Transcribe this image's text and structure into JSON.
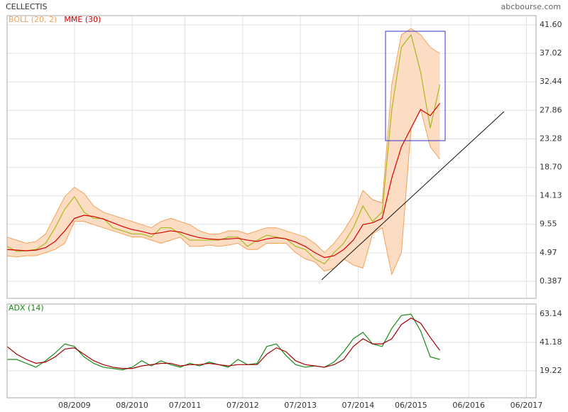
{
  "chart_data": [
    {
      "type": "line",
      "title": "CELLECTIS",
      "source": "abcbourse.com",
      "x": [
        "06/2008",
        "08/2008",
        "10/2008",
        "12/2008",
        "02/2009",
        "04/2009",
        "06/2009",
        "08/2009",
        "10/2009",
        "12/2009",
        "02/2010",
        "04/2010",
        "06/2010",
        "08/2010",
        "10/2010",
        "12/2010",
        "02/2011",
        "04/2011",
        "06/2011",
        "08/2011",
        "10/2011",
        "12/2011",
        "02/2012",
        "04/2012",
        "06/2012",
        "08/2012",
        "10/2012",
        "12/2012",
        "02/2013",
        "04/2013",
        "06/2013",
        "08/2013",
        "10/2013",
        "12/2013",
        "02/2014",
        "04/2014",
        "06/2014",
        "08/2014",
        "10/2014",
        "12/2014",
        "02/2015",
        "04/2015",
        "06/2015",
        "08/2015",
        "10/2015",
        "12/2015"
      ],
      "xlim": [
        "06/2008",
        "08/2017"
      ],
      "xticks": [
        "08/2009",
        "08/2010",
        "07/2011",
        "07/2012",
        "07/2013",
        "07/2014",
        "06/2015",
        "06/2016",
        "06/2017"
      ],
      "ylim": [
        -2.35,
        43.08
      ],
      "yticks": [
        {
          "value": 41.6,
          "label": "41.60"
        },
        37.02,
        32.44,
        27.86,
        23.28,
        {
          "value": 18.7,
          "label": "18.70"
        },
        14.13,
        9.55,
        4.97,
        0.387
      ],
      "grid": true,
      "bands": {
        "name": "BOLL (20, 2)",
        "color": "#f2a25a",
        "fill": "#fcdcc2",
        "upper": [
          7.5,
          7.0,
          6.5,
          6.8,
          8.0,
          11.0,
          14.0,
          15.5,
          14.5,
          12.5,
          11.5,
          11.0,
          10.5,
          10.0,
          9.5,
          9.0,
          10.0,
          10.5,
          10.0,
          9.5,
          8.5,
          8.0,
          8.0,
          8.5,
          8.5,
          8.0,
          8.5,
          9.0,
          9.0,
          8.5,
          8.0,
          7.5,
          6.5,
          5.0,
          6.5,
          8.5,
          11.0,
          15.0,
          13.5,
          13.0,
          32,
          40,
          41,
          40,
          38,
          37
        ],
        "lower": [
          4.5,
          4.3,
          4.5,
          4.5,
          5.0,
          5.5,
          6.5,
          10.0,
          10.0,
          9.5,
          9.0,
          8.5,
          8.0,
          7.5,
          7.5,
          7.0,
          6.5,
          7.0,
          7.5,
          6.0,
          6.0,
          6.2,
          6.0,
          6.2,
          6.5,
          5.5,
          5.5,
          6.5,
          6.5,
          6.5,
          5.0,
          4.0,
          3.5,
          2.0,
          2.5,
          4.0,
          3.0,
          2.5,
          8.0,
          9.0,
          1.5,
          5.0,
          25,
          28,
          22,
          20
        ]
      },
      "series": [
        {
          "color": "#a9b91e",
          "values": [
            6.0,
            5.2,
            5.3,
            5.5,
            6.5,
            9.0,
            12.0,
            14.0,
            11.5,
            10.5,
            10.5,
            9.0,
            8.5,
            8.0,
            8.0,
            7.5,
            9.0,
            9.0,
            8.0,
            7.0,
            7.0,
            7.0,
            7.0,
            7.5,
            7.5,
            6.0,
            7.0,
            7.8,
            7.5,
            7.2,
            6.0,
            5.5,
            4.0,
            3.2,
            5.0,
            6.5,
            9.0,
            12.5,
            10.0,
            11.5,
            28,
            38,
            40,
            34,
            25,
            32
          ]
        },
        {
          "name": "MME (30)",
          "color": "#d40000",
          "values": [
            5.5,
            5.4,
            5.3,
            5.4,
            5.8,
            6.8,
            8.5,
            10.5,
            11.0,
            10.8,
            10.4,
            9.8,
            9.2,
            8.7,
            8.4,
            8.0,
            8.2,
            8.5,
            8.3,
            7.8,
            7.4,
            7.2,
            7.1,
            7.2,
            7.3,
            7.0,
            6.8,
            7.2,
            7.4,
            7.2,
            6.7,
            6.0,
            5.0,
            4.2,
            4.5,
            5.5,
            7.0,
            9.5,
            9.8,
            10.5,
            17,
            22,
            25,
            28,
            27,
            29
          ]
        }
      ]
    },
    {
      "type": "line",
      "x": [
        "06/2008",
        "08/2008",
        "10/2008",
        "12/2008",
        "02/2009",
        "04/2009",
        "06/2009",
        "08/2009",
        "10/2009",
        "12/2009",
        "02/2010",
        "04/2010",
        "06/2010",
        "08/2010",
        "10/2010",
        "12/2010",
        "02/2011",
        "04/2011",
        "06/2011",
        "08/2011",
        "10/2011",
        "12/2011",
        "02/2012",
        "04/2012",
        "06/2012",
        "08/2012",
        "10/2012",
        "12/2012",
        "02/2013",
        "04/2013",
        "06/2013",
        "08/2013",
        "10/2013",
        "12/2013",
        "02/2014",
        "04/2014",
        "06/2014",
        "08/2014",
        "10/2014",
        "12/2014",
        "02/2015",
        "04/2015",
        "06/2015",
        "08/2015",
        "10/2015",
        "12/2015"
      ],
      "xlim": [
        "06/2008",
        "08/2017"
      ],
      "xticks": [
        "08/2009",
        "08/2010",
        "07/2011",
        "07/2012",
        "07/2013",
        "07/2014",
        "06/2015",
        "06/2016",
        "06/2017"
      ],
      "ylim": [
        -1.64,
        70.83
      ],
      "yticks": [
        63.14,
        41.18,
        19.22
      ],
      "grid": true,
      "series": [
        {
          "name": "ADX (14)",
          "color": "#1a8a1a",
          "values": [
            28,
            28,
            25,
            22,
            27,
            33,
            40,
            38,
            30,
            25,
            22,
            21,
            20,
            22,
            27,
            23,
            27,
            24,
            22,
            25,
            23,
            26,
            24,
            22,
            28,
            24,
            25,
            38,
            40,
            31,
            24,
            22,
            23,
            22,
            26,
            34,
            44,
            49,
            40,
            38,
            52,
            62,
            63,
            50,
            30,
            28
          ]
        },
        {
          "color": "#a00000",
          "values": [
            38,
            32,
            28,
            25,
            26,
            30,
            36,
            37,
            32,
            27,
            24,
            22,
            21,
            21,
            23,
            24,
            25,
            25,
            23,
            24,
            24,
            25,
            24,
            23,
            24,
            24,
            24,
            32,
            37,
            34,
            27,
            24,
            23,
            22,
            24,
            28,
            38,
            44,
            40,
            40,
            44,
            55,
            60,
            56,
            45,
            35
          ]
        }
      ]
    }
  ]
}
